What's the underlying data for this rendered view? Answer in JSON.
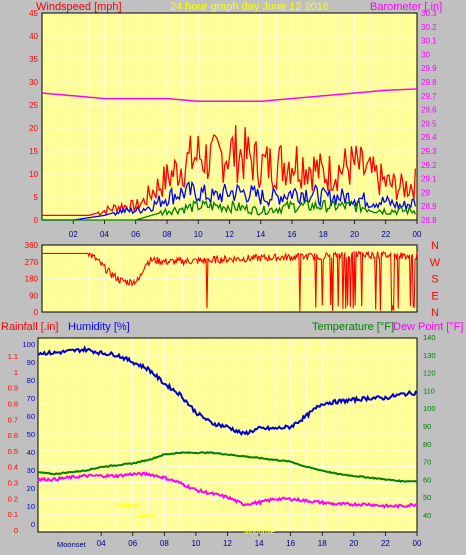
{
  "title": "24 hour graph day   June 12 2016",
  "colors": {
    "plot_bg": "#ffff99",
    "frame": "#c0c0c0",
    "wind_avg": "#0000ff",
    "wind_gust": "#ff0000",
    "wind_low": "#008000",
    "barometer": "#ff00ff",
    "direction": "#ff0000",
    "humidity": "#0000cc",
    "temperature": "#008000",
    "dewpoint": "#ff00ff",
    "sun": "#ffff00"
  },
  "x_ticks": [
    "02",
    "04",
    "06",
    "08",
    "10",
    "12",
    "14",
    "16",
    "18",
    "20",
    "22",
    "00"
  ],
  "x_ticks_bottom": [
    "04",
    "06",
    "08",
    "10",
    "12",
    "14",
    "16",
    "18",
    "20",
    "22",
    "00"
  ],
  "top_panel": {
    "left_label": "Windspeed [mph]",
    "right_label": "Barometer [.in]",
    "left_ticks": [
      "0",
      "5",
      "10",
      "15",
      "20",
      "25",
      "30",
      "35",
      "40",
      "45"
    ],
    "right_ticks": [
      "28.8",
      "28.9",
      "29",
      "29.1",
      "29.2",
      "29.3",
      "29.4",
      "29.5",
      "29.6",
      "29.7",
      "29.8",
      "29.9",
      "30",
      "30.1",
      "30.2",
      "30.3"
    ]
  },
  "dir_panel": {
    "left_ticks": [
      "0",
      "90",
      "180",
      "270",
      "360"
    ],
    "compass": [
      "N",
      "W",
      "S",
      "E",
      "N"
    ]
  },
  "bottom_panel": {
    "label_rain": "Rainfall [.in]",
    "label_humidity": "Humidity [%]",
    "label_temperature": "Temperature [°F]",
    "label_dewpoint": "Dew Point [°F]",
    "left_ticks": [
      "0",
      "0.1",
      "0.2",
      "0.3",
      "0.4",
      "0.5",
      "0.6",
      "0.7",
      "0.8",
      "0.9",
      "1",
      "1.1"
    ],
    "left2_ticks": [
      "0",
      "10",
      "20",
      "30",
      "40",
      "50",
      "60",
      "70",
      "80",
      "90",
      "100"
    ],
    "right_ticks": [
      "40",
      "50",
      "60",
      "70",
      "80",
      "90",
      "100",
      "110",
      "120",
      "130",
      "140"
    ],
    "moon_label": "Moonset",
    "sun_labels": [
      "Sunrise",
      "Sunset",
      "Moonrise"
    ]
  },
  "chart_data": [
    {
      "type": "line",
      "title": "24 hour graph day   June 12 2016",
      "xlabel": "",
      "ylabel": "Windspeed [mph]",
      "ylabel_right": "Barometer [.in]",
      "ylim": [
        0,
        45
      ],
      "ylim_right": [
        28.8,
        30.3
      ],
      "x_range_hours": [
        0,
        24
      ],
      "series": [
        {
          "name": "Barometer [.in]",
          "axis": "right",
          "x": [
            0,
            2,
            4,
            6,
            8,
            10,
            12,
            14,
            16,
            18,
            20,
            22,
            24
          ],
          "values": [
            29.72,
            29.7,
            29.68,
            29.68,
            29.68,
            29.66,
            29.66,
            29.66,
            29.68,
            29.7,
            29.72,
            29.74,
            29.75
          ]
        },
        {
          "name": "Windspeed [mph]",
          "kind": "gust",
          "x": [
            0,
            1,
            2,
            3,
            4,
            5,
            6,
            6.5,
            7,
            8,
            9,
            10,
            11,
            12,
            13,
            14,
            15,
            16,
            17,
            18,
            19,
            20,
            21,
            22,
            23,
            24
          ],
          "values": [
            1,
            1,
            1,
            1,
            2,
            3,
            3,
            4,
            6,
            9,
            12,
            14,
            13,
            15,
            14,
            12,
            12,
            13,
            12,
            10,
            11,
            12,
            10,
            8,
            7,
            8
          ]
        },
        {
          "name": "Windspeed [mph]",
          "kind": "average",
          "x": [
            0,
            1,
            2,
            3,
            4,
            5,
            6,
            6.5,
            7,
            8,
            9,
            10,
            11,
            12,
            13,
            14,
            15,
            16,
            17,
            18,
            19,
            20,
            21,
            22,
            23,
            24
          ],
          "values": [
            0,
            0,
            0,
            0.5,
            1,
            2,
            2,
            2.5,
            3,
            5,
            6,
            6,
            5,
            6,
            6,
            5,
            5,
            6,
            6,
            5,
            5,
            5,
            4,
            4,
            3,
            4
          ]
        },
        {
          "name": "Windspeed [mph]",
          "kind": "low",
          "x": [
            0,
            6,
            7,
            8,
            10,
            12,
            14,
            16,
            18,
            20,
            22,
            24
          ],
          "values": [
            0,
            0,
            1,
            2,
            3,
            3,
            2,
            3,
            3,
            3,
            2,
            2
          ]
        }
      ]
    },
    {
      "type": "line",
      "ylabel": "Wind direction",
      "ylim": [
        0,
        360
      ],
      "series": [
        {
          "name": "Wind direction",
          "x": [
            0,
            3,
            3.5,
            4.2,
            5,
            5.6,
            6.2,
            6.6,
            7,
            8,
            10,
            12,
            14,
            16,
            18,
            20,
            22,
            24
          ],
          "values": [
            315,
            315,
            280,
            220,
            170,
            160,
            170,
            260,
            280,
            270,
            275,
            285,
            290,
            295,
            300,
            310,
            305,
            300
          ]
        }
      ]
    },
    {
      "type": "line",
      "ylabel": "Rainfall [.in]",
      "ylabel_right": "Temperature [°F]",
      "ylim": [
        0,
        1.1
      ],
      "ylim_humidity": [
        0,
        100
      ],
      "ylim_right": [
        40,
        140
      ],
      "series": [
        {
          "name": "Humidity [%]",
          "axis": "humidity",
          "x": [
            0,
            1,
            2,
            3,
            4,
            5,
            6,
            7,
            8,
            9,
            10,
            11,
            12,
            13,
            14,
            15,
            16,
            17,
            18,
            19,
            20,
            21,
            22,
            23,
            24
          ],
          "values": [
            95,
            95,
            96,
            97,
            95,
            94,
            90,
            86,
            78,
            72,
            62,
            56,
            54,
            50,
            53,
            53,
            54,
            60,
            67,
            68,
            69,
            70,
            70,
            72,
            73
          ]
        },
        {
          "name": "Temperature [°F]",
          "axis": "right",
          "x": [
            0,
            1,
            2,
            3,
            4,
            5,
            6,
            7,
            8,
            9,
            10,
            11,
            12,
            13,
            14,
            15,
            16,
            17,
            18,
            19,
            20,
            21,
            22,
            23,
            24
          ],
          "values": [
            64,
            63,
            64,
            65,
            67,
            68,
            69,
            71,
            74,
            75,
            75,
            75,
            74,
            73,
            72,
            71,
            70,
            67,
            65,
            63,
            62,
            61,
            60,
            59,
            59
          ]
        },
        {
          "name": "Dew Point [°F]",
          "axis": "right",
          "x": [
            0,
            1,
            2,
            3,
            4,
            5,
            6,
            7,
            8,
            9,
            10,
            11,
            12,
            13,
            14,
            15,
            16,
            17,
            18,
            19,
            20,
            21,
            22,
            23,
            24
          ],
          "values": [
            60,
            60,
            61,
            62,
            62,
            62,
            63,
            63,
            61,
            58,
            54,
            52,
            50,
            46,
            47,
            49,
            49,
            48,
            47,
            46,
            46,
            46,
            45,
            45,
            46
          ]
        }
      ]
    }
  ]
}
